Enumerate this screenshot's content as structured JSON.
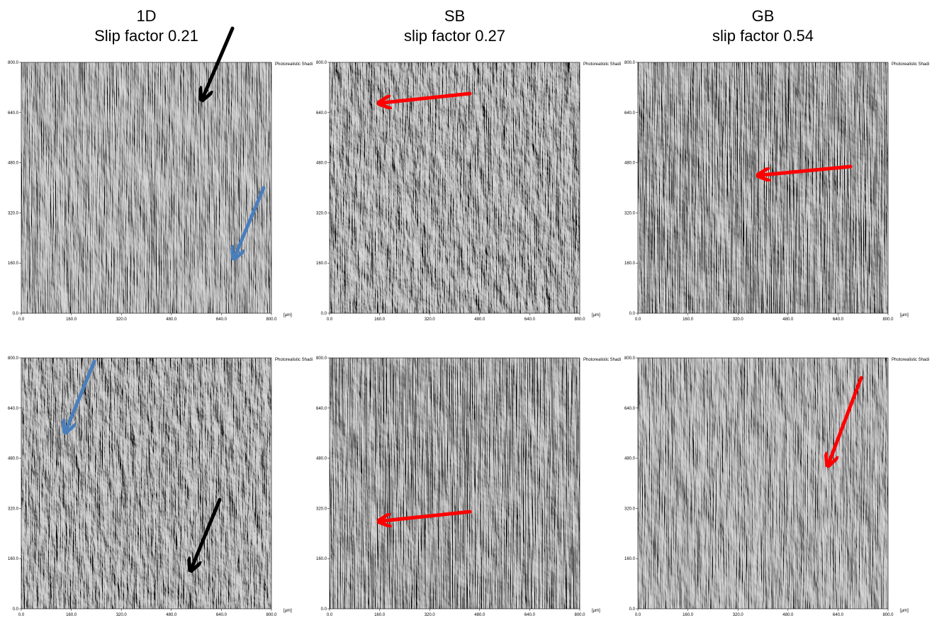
{
  "columns": [
    {
      "title": "1D",
      "subtitle": "Slip factor 0.21"
    },
    {
      "title": "SB",
      "subtitle": "slip factor 0.27"
    },
    {
      "title": "GB",
      "subtitle": "slip factor 0.54"
    }
  ],
  "axis": {
    "ticks": [
      "0.0",
      "160.0",
      "320.0",
      "480.0",
      "640.0",
      "800.0"
    ],
    "unit": "[µm]",
    "mode": "Photorealistic Shadi"
  }
}
